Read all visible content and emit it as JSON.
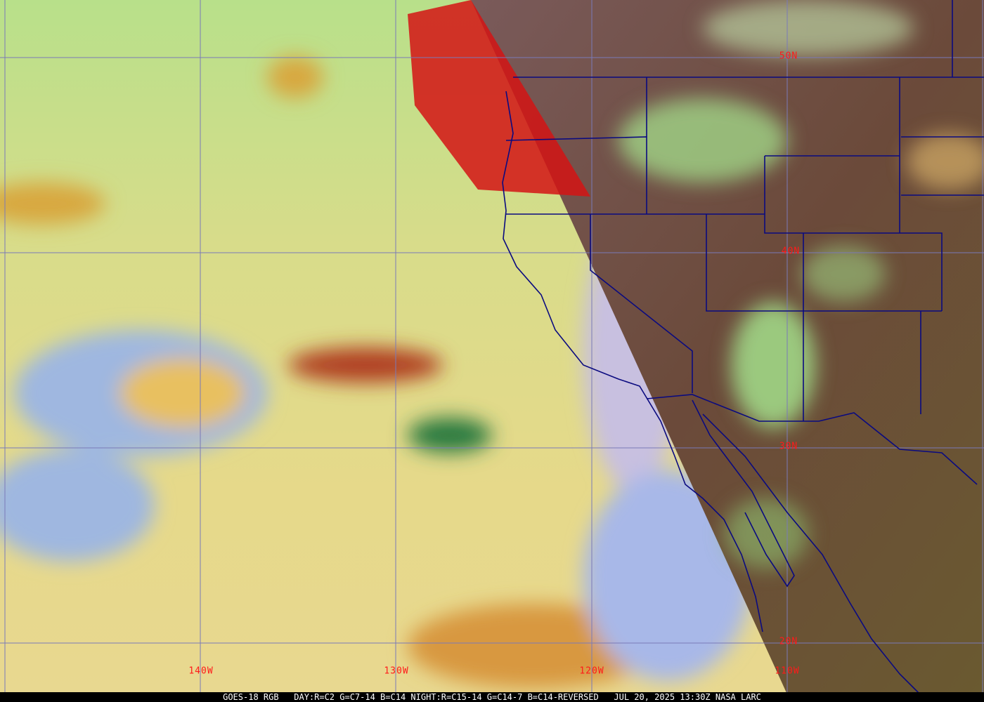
{
  "caption": "GOES-18 RGB   DAY:R=C2 G=C7-14 B=C14 NIGHT:R=C15-14 G=C14-7 B=C14-REVERSED   JUL 20, 2025 13:30Z NASA LARC",
  "grid": {
    "latitudes": [
      {
        "label": "50N"
      },
      {
        "label": "40N"
      },
      {
        "label": "30N"
      },
      {
        "label": "20N"
      }
    ],
    "longitudes": [
      {
        "label": "140W"
      },
      {
        "label": "130W"
      },
      {
        "label": "120W"
      },
      {
        "label": "110W"
      }
    ],
    "line_color": "#7a7ab8",
    "label_color": "#ff1a1a"
  },
  "colors": {
    "ocean_day": "#e6d98a",
    "ocean_blue": "#9fb7e0",
    "clouds_green": "#a8e890",
    "land_night": "#6b4a3a",
    "smoke_red": "#d41414",
    "borders": "#0a0a80"
  }
}
